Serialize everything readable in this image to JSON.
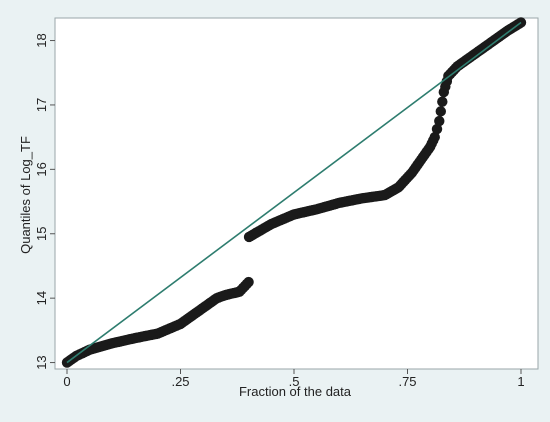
{
  "chart_data": {
    "type": "scatter",
    "title": "",
    "xlabel": "Fraction of the data",
    "ylabel": "Quantiles of Log_TF",
    "xlim": [
      0,
      1
    ],
    "ylim": [
      12.9,
      18.35
    ],
    "x_ticks": [
      {
        "value": 0,
        "label": "0"
      },
      {
        "value": 0.25,
        "label": ".25"
      },
      {
        "value": 0.5,
        "label": ".5"
      },
      {
        "value": 0.75,
        "label": ".75"
      },
      {
        "value": 1,
        "label": "1"
      }
    ],
    "y_ticks": [
      {
        "value": 13,
        "label": "13"
      },
      {
        "value": 14,
        "label": "14"
      },
      {
        "value": 15,
        "label": "15"
      },
      {
        "value": 16,
        "label": "16"
      },
      {
        "value": 17,
        "label": "17"
      },
      {
        "value": 18,
        "label": "18"
      }
    ],
    "grid": false,
    "legend": "none",
    "colors": {
      "points": "#1a1a1a",
      "reference_line": "#2e7d6f",
      "background": "#eaf2f3",
      "plot_area": "#ffffff"
    },
    "reference_line": {
      "x": [
        0,
        1
      ],
      "y": [
        13.0,
        18.28
      ]
    },
    "points_profile": {
      "x": [
        0,
        0.02,
        0.05,
        0.1,
        0.15,
        0.2,
        0.25,
        0.28,
        0.3,
        0.33,
        0.35,
        0.38,
        0.4,
        0.401,
        0.45,
        0.5,
        0.55,
        0.6,
        0.65,
        0.7,
        0.73,
        0.76,
        0.78,
        0.8,
        0.81,
        0.82,
        0.83,
        0.84,
        0.86,
        0.9,
        0.94,
        0.97,
        1.0
      ],
      "y": [
        13.0,
        13.1,
        13.2,
        13.3,
        13.38,
        13.45,
        13.6,
        13.75,
        13.85,
        14.0,
        14.05,
        14.1,
        14.25,
        14.95,
        15.15,
        15.3,
        15.38,
        15.48,
        15.55,
        15.6,
        15.72,
        15.95,
        16.15,
        16.35,
        16.5,
        16.75,
        17.2,
        17.45,
        17.6,
        17.8,
        18.0,
        18.15,
        18.28
      ]
    }
  }
}
